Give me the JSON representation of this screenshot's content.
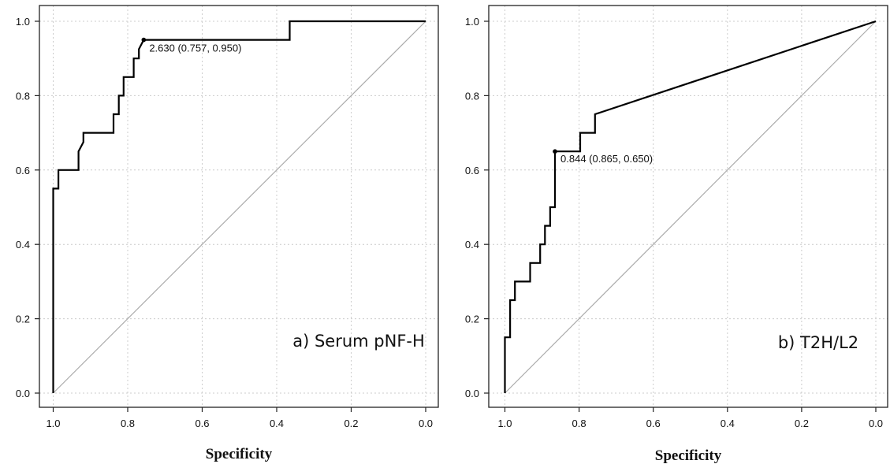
{
  "chart_data": [
    {
      "type": "line",
      "title": "a) Serum pNF-H",
      "xlabel": "Specificity",
      "ylabel": "",
      "xlim": [
        1.0,
        0.0
      ],
      "ylim": [
        0.0,
        1.0
      ],
      "x_reversed": true,
      "grid": true,
      "xticks": [
        1.0,
        0.8,
        0.6,
        0.4,
        0.2,
        0.0
      ],
      "xtick_labels": [
        "1.0",
        "0.8",
        "0.6",
        "0.4",
        "0.2",
        "0.0"
      ],
      "yticks": [
        0.0,
        0.2,
        0.4,
        0.6,
        0.8,
        1.0
      ],
      "ytick_labels": [
        "0.0",
        "0.2",
        "0.4",
        "0.6",
        "0.8",
        "1.0"
      ],
      "series": [
        {
          "x": [
            1.0,
            1.0,
            0.986,
            0.986,
            0.932,
            0.932,
            0.919,
            0.919,
            0.838,
            0.838,
            0.824,
            0.824,
            0.811,
            0.811,
            0.784,
            0.784,
            0.77,
            0.77,
            0.757,
            0.365,
            0.365,
            0.0
          ],
          "y": [
            0.0,
            0.55,
            0.55,
            0.6,
            0.6,
            0.65,
            0.675,
            0.7,
            0.7,
            0.75,
            0.75,
            0.8,
            0.8,
            0.85,
            0.85,
            0.9,
            0.9,
            0.925,
            0.95,
            0.95,
            1.0,
            1.0
          ]
        }
      ],
      "reference_line": {
        "x": [
          1.0,
          0.0
        ],
        "y": [
          0.0,
          1.0
        ],
        "color": "#aaaaaa"
      },
      "cutoff_point": {
        "x": 0.757,
        "y": 0.95,
        "label": "2.630 (0.757, 0.950)"
      }
    },
    {
      "type": "line",
      "title": "b) T2H/L2",
      "xlabel": "Specificity",
      "ylabel": "",
      "xlim": [
        1.0,
        0.0
      ],
      "ylim": [
        0.0,
        1.0
      ],
      "x_reversed": true,
      "grid": true,
      "xticks": [
        1.0,
        0.8,
        0.6,
        0.4,
        0.2,
        0.0
      ],
      "xtick_labels": [
        "1.0",
        "0.8",
        "0.6",
        "0.4",
        "0.2",
        "0.0"
      ],
      "yticks": [
        0.0,
        0.2,
        0.4,
        0.6,
        0.8,
        1.0
      ],
      "ytick_labels": [
        "0.0",
        "0.2",
        "0.4",
        "0.6",
        "0.8",
        "1.0"
      ],
      "series": [
        {
          "x": [
            1.0,
            1.0,
            0.986,
            0.986,
            0.973,
            0.973,
            0.959,
            0.959,
            0.932,
            0.932,
            0.905,
            0.905,
            0.892,
            0.892,
            0.878,
            0.878,
            0.865,
            0.865,
            0.797,
            0.797,
            0.757,
            0.757,
            0.0
          ],
          "y": [
            0.0,
            0.15,
            0.15,
            0.25,
            0.25,
            0.3,
            0.3,
            0.3,
            0.3,
            0.35,
            0.35,
            0.4,
            0.4,
            0.45,
            0.45,
            0.5,
            0.5,
            0.65,
            0.65,
            0.7,
            0.7,
            0.75,
            1.0
          ]
        }
      ],
      "reference_line": {
        "x": [
          1.0,
          0.0
        ],
        "y": [
          0.0,
          1.0
        ],
        "color": "#aaaaaa"
      },
      "cutoff_point": {
        "x": 0.865,
        "y": 0.65,
        "label": "0.844 (0.865, 0.650)"
      }
    }
  ],
  "colors": {
    "curve": "#000000",
    "reference": "#aaaaaa",
    "grid": "#cccccc",
    "axis": "#222222"
  }
}
